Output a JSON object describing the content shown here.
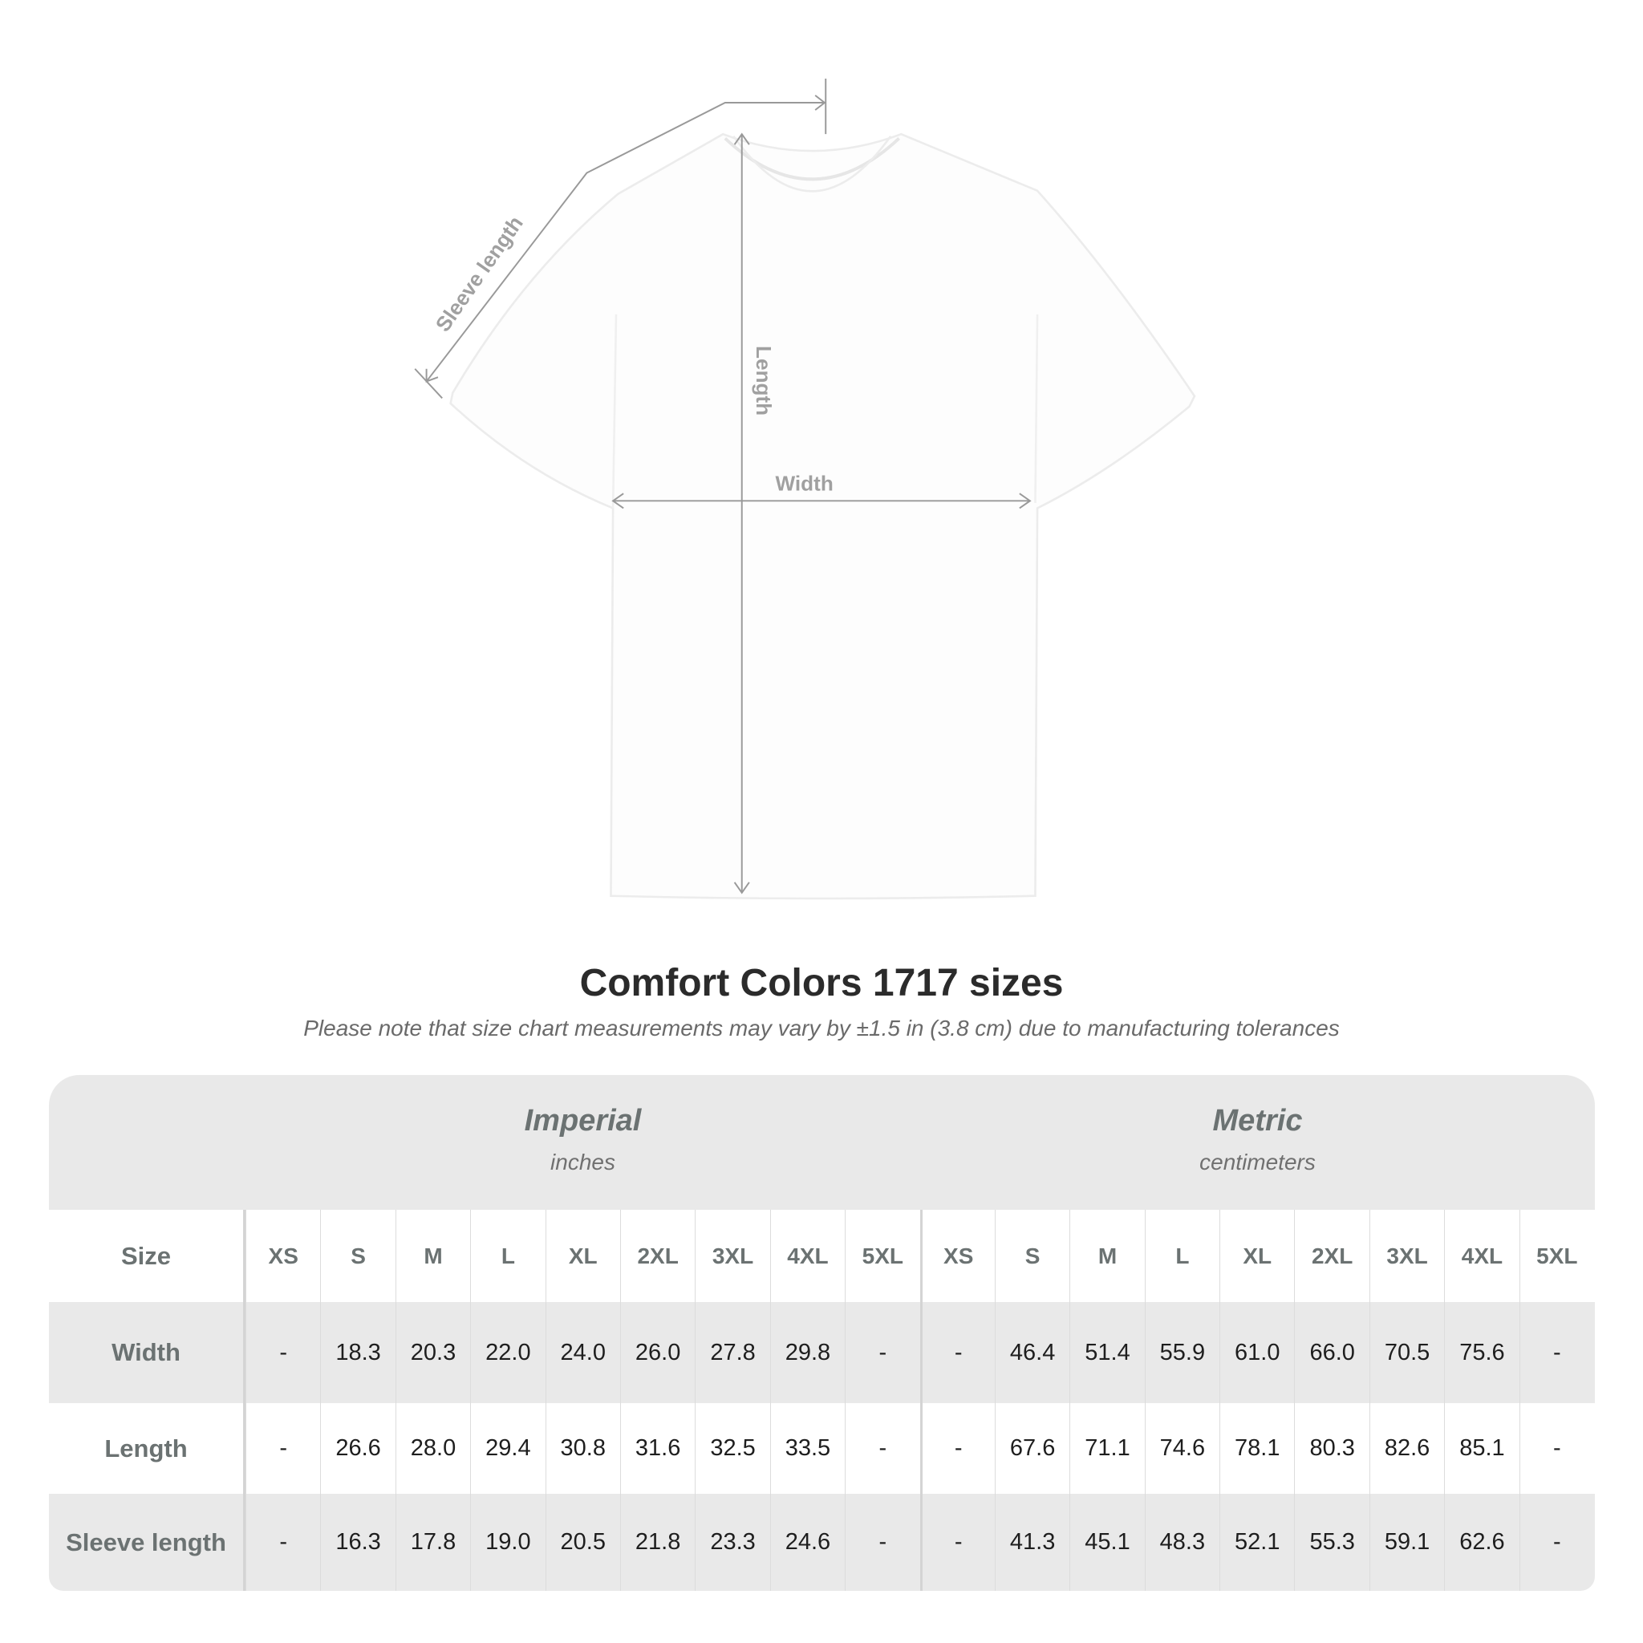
{
  "diagram": {
    "labels": {
      "sleeve_length": "Sleeve length",
      "length": "Length",
      "width": "Width"
    },
    "line_color": "#999999"
  },
  "title": "Comfort Colors 1717 sizes",
  "note": "Please note that size chart measurements may vary by ±1.5 in (3.8 cm) due to manufacturing tolerances",
  "table": {
    "imperial": {
      "label": "Imperial",
      "unit": "inches"
    },
    "metric": {
      "label": "Metric",
      "unit": "centimeters"
    },
    "size_label": "Size",
    "sizes": [
      "XS",
      "S",
      "M",
      "L",
      "XL",
      "2XL",
      "3XL",
      "4XL",
      "5XL"
    ],
    "rows": [
      {
        "label": "Width",
        "imperial": [
          "-",
          "18.3",
          "20.3",
          "22.0",
          "24.0",
          "26.0",
          "27.8",
          "29.8",
          "-"
        ],
        "metric": [
          "-",
          "46.4",
          "51.4",
          "55.9",
          "61.0",
          "66.0",
          "70.5",
          "75.6",
          "-"
        ]
      },
      {
        "label": "Length",
        "imperial": [
          "-",
          "26.6",
          "28.0",
          "29.4",
          "30.8",
          "31.6",
          "32.5",
          "33.5",
          "-"
        ],
        "metric": [
          "-",
          "67.6",
          "71.1",
          "74.6",
          "78.1",
          "80.3",
          "82.6",
          "85.1",
          "-"
        ]
      },
      {
        "label": "Sleeve length",
        "imperial": [
          "-",
          "16.3",
          "17.8",
          "19.0",
          "20.5",
          "21.8",
          "23.3",
          "24.6",
          "-"
        ],
        "metric": [
          "-",
          "41.3",
          "45.1",
          "48.3",
          "52.1",
          "55.3",
          "59.1",
          "62.6",
          "-"
        ]
      }
    ]
  }
}
